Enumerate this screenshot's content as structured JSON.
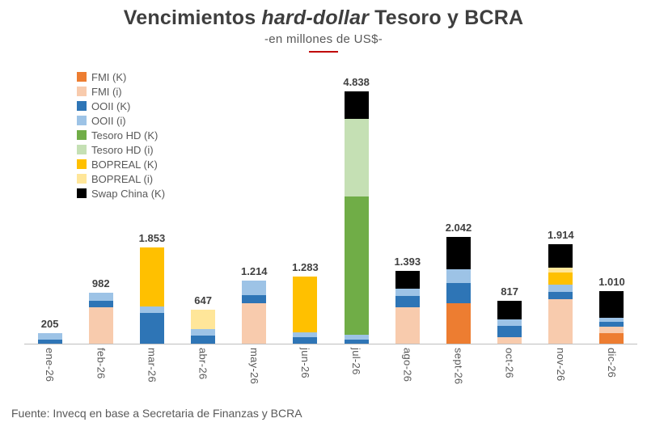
{
  "header": {
    "title_pre": "Vencimientos",
    "title_italic": "hard-dollar",
    "title_post": "Tesoro y BCRA",
    "subtitle": "-en millones de US$-",
    "accent_color": "#c00000"
  },
  "footer": {
    "source": "Fuente: Invecq en base a Secretaria de Finanzas y BCRA"
  },
  "chart_data": {
    "type": "bar",
    "stacked": true,
    "title": "Vencimientos hard-dollar Tesoro y BCRA",
    "subtitle": "-en millones de US$-",
    "xlabel": "",
    "ylabel": "millones de US$",
    "ylim": [
      0,
      4838
    ],
    "grid": false,
    "legend_position": "top-left",
    "categories": [
      "ene-26",
      "feb-26",
      "mar-26",
      "abr-26",
      "may-26",
      "jun-26",
      "jul-26",
      "ago-26",
      "sept-26",
      "oct-26",
      "nov-26",
      "dic-26"
    ],
    "totals": [
      205,
      982,
      1853,
      647,
      1214,
      1283,
      4838,
      1393,
      2042,
      817,
      1914,
      1010
    ],
    "totals_labels": [
      "205",
      "982",
      "1.853",
      "647",
      "1.214",
      "1.283",
      "4.838",
      "1.393",
      "2.042",
      "817",
      "1.914",
      "1.010"
    ],
    "series": [
      {
        "name": "FMI (K)",
        "color": "#ED7D31",
        "values": [
          0,
          0,
          0,
          0,
          0,
          0,
          0,
          0,
          780,
          0,
          0,
          200
        ]
      },
      {
        "name": "FMI (i)",
        "color": "#F8CBAD",
        "values": [
          0,
          700,
          0,
          0,
          780,
          0,
          0,
          700,
          0,
          120,
          860,
          125
        ]
      },
      {
        "name": "OOII (K)",
        "color": "#2E75B6",
        "values": [
          80,
          130,
          590,
          160,
          155,
          125,
          80,
          220,
          390,
          230,
          140,
          95
        ]
      },
      {
        "name": "OOII (i)",
        "color": "#9DC3E6",
        "values": [
          125,
          152,
          125,
          125,
          279,
          95,
          95,
          140,
          250,
          120,
          125,
          80
        ]
      },
      {
        "name": "Tesoro HD (K)",
        "color": "#70AD47",
        "values": [
          0,
          0,
          0,
          0,
          0,
          0,
          2650,
          0,
          0,
          0,
          0,
          0
        ]
      },
      {
        "name": "Tesoro HD (i)",
        "color": "#C5E0B4",
        "values": [
          0,
          0,
          0,
          0,
          0,
          0,
          1480,
          0,
          0,
          0,
          0,
          0
        ]
      },
      {
        "name": "BOPREAL (K)",
        "color": "#FFC000",
        "values": [
          0,
          0,
          1138,
          0,
          0,
          1063,
          0,
          0,
          0,
          0,
          235,
          0
        ]
      },
      {
        "name": "BOPREAL (i)",
        "color": "#FFE699",
        "values": [
          0,
          0,
          0,
          362,
          0,
          0,
          0,
          0,
          0,
          0,
          90,
          0
        ]
      },
      {
        "name": "Swap China (K)",
        "color": "#000000",
        "values": [
          0,
          0,
          0,
          0,
          0,
          0,
          533,
          333,
          622,
          347,
          464,
          510
        ]
      }
    ]
  }
}
